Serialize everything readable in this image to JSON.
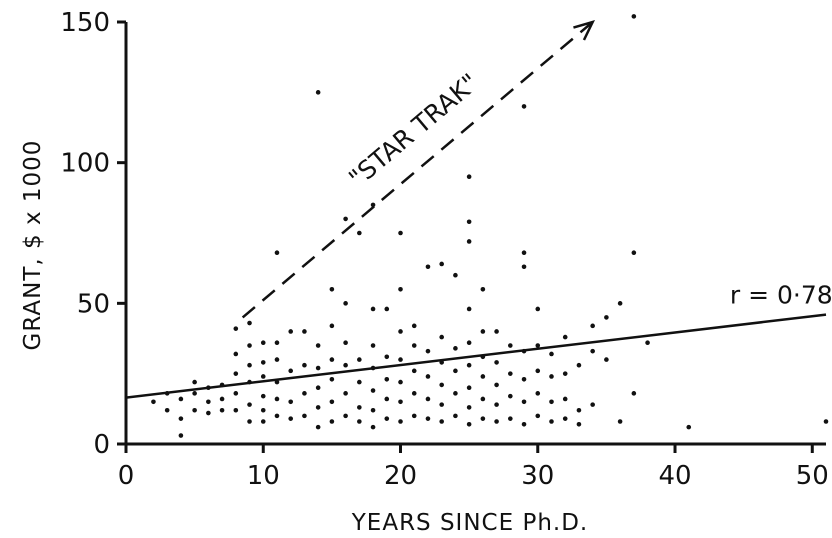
{
  "chart_data": {
    "type": "scatter",
    "xlabel": "YEARS SINCE Ph.D.",
    "ylabel": "GRANT, $ x 1000",
    "xlim": [
      0,
      51
    ],
    "ylim": [
      0,
      150
    ],
    "xticks": [
      0,
      10,
      20,
      30,
      40,
      50
    ],
    "yticks": [
      0,
      50,
      100,
      150
    ],
    "x_tick_labels": [
      "0",
      "10",
      "20",
      "30",
      "40",
      "50"
    ],
    "y_tick_labels": [
      "0",
      "50",
      "100",
      "150"
    ],
    "grid": false,
    "points": [
      [
        2,
        15
      ],
      [
        3,
        12
      ],
      [
        3,
        18
      ],
      [
        4,
        3
      ],
      [
        4,
        9
      ],
      [
        4,
        16
      ],
      [
        5,
        12
      ],
      [
        5,
        18
      ],
      [
        5,
        22
      ],
      [
        6,
        11
      ],
      [
        6,
        15
      ],
      [
        6,
        20
      ],
      [
        7,
        12
      ],
      [
        7,
        16
      ],
      [
        7,
        21
      ],
      [
        8,
        12
      ],
      [
        8,
        18
      ],
      [
        8,
        25
      ],
      [
        8,
        32
      ],
      [
        8,
        41
      ],
      [
        9,
        8
      ],
      [
        9,
        14
      ],
      [
        9,
        22
      ],
      [
        9,
        28
      ],
      [
        9,
        35
      ],
      [
        9,
        43
      ],
      [
        10,
        8
      ],
      [
        10,
        12
      ],
      [
        10,
        17
      ],
      [
        10,
        24
      ],
      [
        10,
        29
      ],
      [
        10,
        36
      ],
      [
        11,
        10
      ],
      [
        11,
        16
      ],
      [
        11,
        22
      ],
      [
        11,
        30
      ],
      [
        11,
        36
      ],
      [
        11,
        68
      ],
      [
        12,
        9
      ],
      [
        12,
        15
      ],
      [
        12,
        26
      ],
      [
        12,
        40
      ],
      [
        13,
        10
      ],
      [
        13,
        18
      ],
      [
        13,
        28
      ],
      [
        13,
        40
      ],
      [
        14,
        6
      ],
      [
        14,
        13
      ],
      [
        14,
        20
      ],
      [
        14,
        27
      ],
      [
        14,
        35
      ],
      [
        14,
        125
      ],
      [
        15,
        8
      ],
      [
        15,
        15
      ],
      [
        15,
        23
      ],
      [
        15,
        30
      ],
      [
        15,
        42
      ],
      [
        15,
        55
      ],
      [
        16,
        10
      ],
      [
        16,
        18
      ],
      [
        16,
        28
      ],
      [
        16,
        36
      ],
      [
        16,
        50
      ],
      [
        16,
        80
      ],
      [
        17,
        8
      ],
      [
        17,
        13
      ],
      [
        17,
        22
      ],
      [
        17,
        30
      ],
      [
        17,
        75
      ],
      [
        18,
        6
      ],
      [
        18,
        12
      ],
      [
        18,
        19
      ],
      [
        18,
        27
      ],
      [
        18,
        35
      ],
      [
        18,
        48
      ],
      [
        18,
        85
      ],
      [
        19,
        9
      ],
      [
        19,
        16
      ],
      [
        19,
        23
      ],
      [
        19,
        31
      ],
      [
        19,
        48
      ],
      [
        20,
        8
      ],
      [
        20,
        15
      ],
      [
        20,
        22
      ],
      [
        20,
        30
      ],
      [
        20,
        40
      ],
      [
        20,
        55
      ],
      [
        20,
        75
      ],
      [
        21,
        10
      ],
      [
        21,
        18
      ],
      [
        21,
        26
      ],
      [
        21,
        35
      ],
      [
        21,
        42
      ],
      [
        22,
        9
      ],
      [
        22,
        16
      ],
      [
        22,
        24
      ],
      [
        22,
        33
      ],
      [
        22,
        63
      ],
      [
        23,
        8
      ],
      [
        23,
        14
      ],
      [
        23,
        21
      ],
      [
        23,
        29
      ],
      [
        23,
        38
      ],
      [
        23,
        64
      ],
      [
        24,
        10
      ],
      [
        24,
        18
      ],
      [
        24,
        26
      ],
      [
        24,
        34
      ],
      [
        24,
        60
      ],
      [
        25,
        7
      ],
      [
        25,
        13
      ],
      [
        25,
        20
      ],
      [
        25,
        28
      ],
      [
        25,
        36
      ],
      [
        25,
        48
      ],
      [
        25,
        72
      ],
      [
        25,
        79
      ],
      [
        25,
        95
      ],
      [
        26,
        9
      ],
      [
        26,
        16
      ],
      [
        26,
        24
      ],
      [
        26,
        31
      ],
      [
        26,
        40
      ],
      [
        26,
        55
      ],
      [
        27,
        8
      ],
      [
        27,
        14
      ],
      [
        27,
        21
      ],
      [
        27,
        29
      ],
      [
        27,
        40
      ],
      [
        28,
        9
      ],
      [
        28,
        17
      ],
      [
        28,
        25
      ],
      [
        28,
        35
      ],
      [
        29,
        7
      ],
      [
        29,
        15
      ],
      [
        29,
        23
      ],
      [
        29,
        33
      ],
      [
        29,
        63
      ],
      [
        29,
        68
      ],
      [
        29,
        120
      ],
      [
        30,
        10
      ],
      [
        30,
        18
      ],
      [
        30,
        26
      ],
      [
        30,
        35
      ],
      [
        30,
        48
      ],
      [
        31,
        8
      ],
      [
        31,
        15
      ],
      [
        31,
        24
      ],
      [
        31,
        32
      ],
      [
        32,
        9
      ],
      [
        32,
        16
      ],
      [
        32,
        25
      ],
      [
        32,
        38
      ],
      [
        33,
        7
      ],
      [
        33,
        12
      ],
      [
        33,
        28
      ],
      [
        34,
        14
      ],
      [
        34,
        33
      ],
      [
        34,
        42
      ],
      [
        35,
        30
      ],
      [
        35,
        45
      ],
      [
        36,
        8
      ],
      [
        36,
        50
      ],
      [
        37,
        18
      ],
      [
        37,
        68
      ],
      [
        37,
        152
      ],
      [
        38,
        36
      ],
      [
        41,
        6
      ],
      [
        51,
        8
      ]
    ],
    "fit_line": {
      "x": [
        0,
        51
      ],
      "y": [
        16.5,
        46
      ],
      "label": "r = 0·78"
    },
    "annotation": {
      "text": "\"STAR TRAK\"",
      "x": [
        8.5,
        34
      ],
      "y": [
        45,
        150
      ]
    }
  }
}
